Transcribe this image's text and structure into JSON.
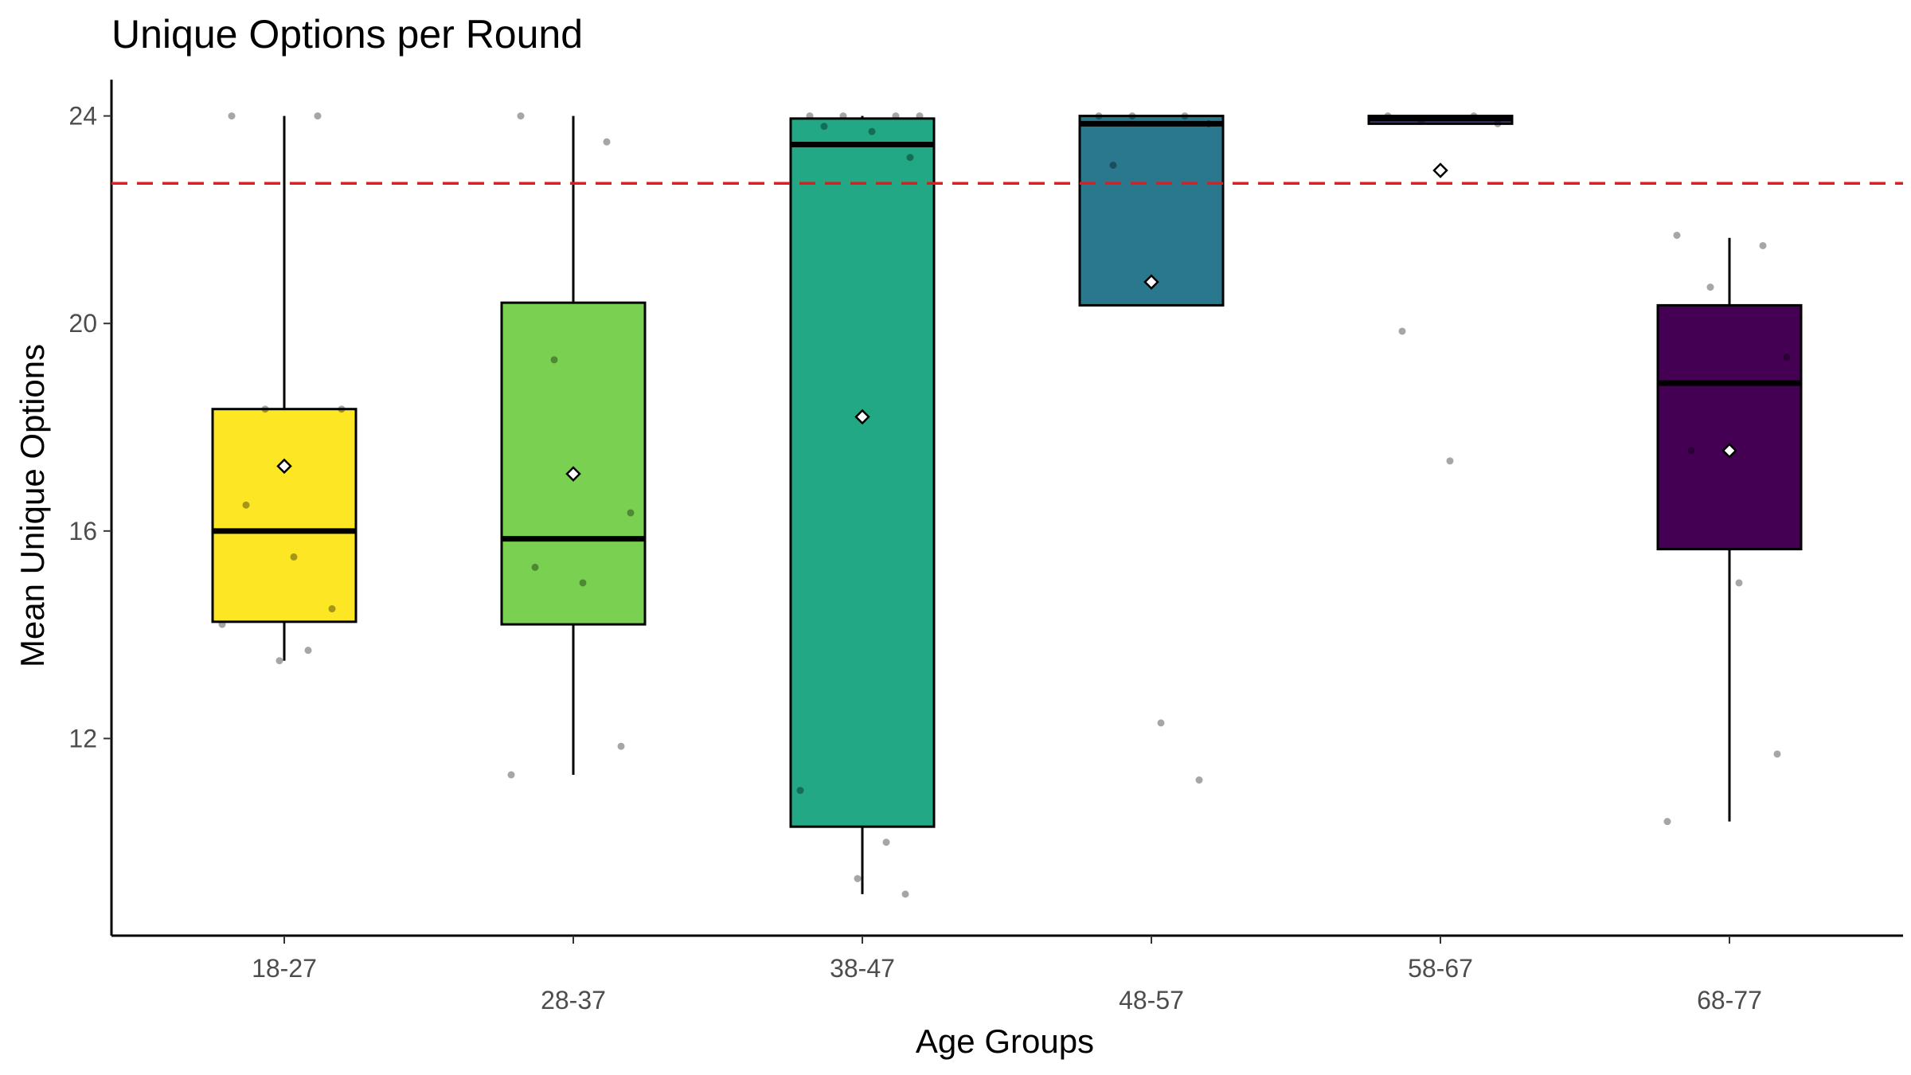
{
  "chart_data": {
    "type": "box",
    "title": "Unique Options per Round",
    "xlabel": "Age Groups",
    "ylabel": "Mean Unique Options",
    "ylim": [
      8.2,
      24.7
    ],
    "yticks": [
      12,
      16,
      20,
      24
    ],
    "categories": [
      "18-27",
      "28-37",
      "38-47",
      "48-57",
      "58-67",
      "68-77"
    ],
    "reference_line": {
      "value": 22.7,
      "color": "#e41a1c",
      "style": "dashed"
    },
    "colors": [
      "#fde725",
      "#7ad151",
      "#22a884",
      "#2a788e",
      "#414487",
      "#440154"
    ],
    "boxes": [
      {
        "category": "18-27",
        "whisker_low": 13.5,
        "q1": 14.25,
        "median": 16.0,
        "q3": 18.35,
        "whisker_high": 24.0,
        "mean": 17.25
      },
      {
        "category": "28-37",
        "whisker_low": 11.3,
        "q1": 14.2,
        "median": 15.85,
        "q3": 20.4,
        "whisker_high": 24.0,
        "mean": 17.1
      },
      {
        "category": "38-47",
        "whisker_low": 9.0,
        "q1": 10.3,
        "median": 23.45,
        "q3": 23.95,
        "whisker_high": 24.0,
        "mean": 18.2
      },
      {
        "category": "48-57",
        "whisker_low": 20.35,
        "q1": 20.35,
        "median": 23.85,
        "q3": 24.0,
        "whisker_high": 24.0,
        "mean": 20.8
      },
      {
        "category": "58-67",
        "whisker_low": 23.85,
        "q1": 23.85,
        "median": 23.95,
        "q3": 24.0,
        "whisker_high": 24.0,
        "mean": 22.95
      },
      {
        "category": "68-77",
        "whisker_low": 10.4,
        "q1": 15.65,
        "median": 18.85,
        "q3": 20.35,
        "whisker_high": 21.65,
        "mean": 17.55
      }
    ],
    "points": [
      {
        "category": "18-27",
        "values": [
          24.0,
          24.0,
          18.35,
          18.35,
          16.5,
          15.5,
          14.5,
          14.2,
          13.7,
          13.5
        ]
      },
      {
        "category": "28-37",
        "values": [
          24.0,
          23.5,
          19.3,
          16.35,
          15.3,
          15.0,
          11.85,
          11.3
        ]
      },
      {
        "category": "38-47",
        "values": [
          24.0,
          24.0,
          24.0,
          24.0,
          23.8,
          23.7,
          23.2,
          11.0,
          10.0,
          9.3,
          9.0
        ]
      },
      {
        "category": "48-57",
        "values": [
          24.0,
          24.0,
          24.0,
          23.85,
          23.05,
          12.3,
          11.2
        ]
      },
      {
        "category": "58-67",
        "values": [
          24.0,
          24.0,
          23.9,
          23.85,
          19.85,
          17.35
        ]
      },
      {
        "category": "68-77",
        "values": [
          21.7,
          21.5,
          20.7,
          19.35,
          17.55,
          15.0,
          11.7,
          10.4
        ]
      }
    ]
  }
}
